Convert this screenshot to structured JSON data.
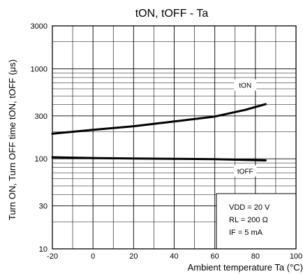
{
  "chart_data": {
    "type": "line",
    "title": "tON, tOFF - Ta",
    "xlabel": "Ambient temperature Ta (°C)",
    "ylabel": "Turn ON, Turn OFF time tON, tOFF (μs)",
    "xlim": [
      -20,
      100
    ],
    "ylim": [
      10,
      3000
    ],
    "yscale": "log",
    "grid": true,
    "x_ticks": [
      "-20",
      "0",
      "20",
      "40",
      "60",
      "80",
      "100"
    ],
    "y_ticks": [
      "10",
      "30",
      "100",
      "300",
      "1000",
      "3000"
    ],
    "series": [
      {
        "name": "tON",
        "x": [
          -20,
          0,
          20,
          40,
          60,
          75,
          85
        ],
        "y": [
          190,
          210,
          230,
          260,
          295,
          350,
          405
        ]
      },
      {
        "name": "tOFF",
        "x": [
          -20,
          0,
          20,
          40,
          60,
          85
        ],
        "y": [
          104,
          102,
          101,
          100,
          99,
          96
        ]
      }
    ],
    "conditions": [
      "VDD = 20 V",
      "RL = 200 Ω",
      "IF = 5 mA"
    ]
  }
}
